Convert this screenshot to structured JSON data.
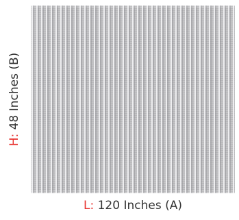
{
  "swatch": {
    "pattern": "vertical-stripe",
    "colors": {
      "base": "#c4c4c6",
      "stripe_light": "#f5f5f7",
      "stripe_dark": "#96969a"
    }
  },
  "dimensions": {
    "length": {
      "prefix": "L:",
      "value": " 120 Inches (A)",
      "prefix_color": "#e8322f"
    },
    "height": {
      "prefix": "H:",
      "value": " 48 Inches (B)",
      "prefix_color": "#e8322f"
    }
  }
}
